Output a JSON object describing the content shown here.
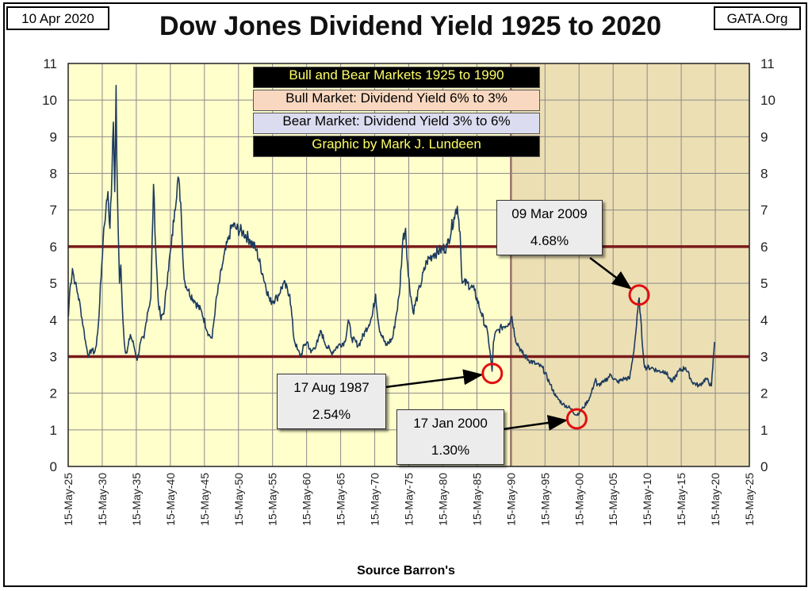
{
  "header": {
    "date": "10 Apr 2020",
    "source_tag": "GATA.Org",
    "title": "Dow Jones Dividend Yield 1925 to 2020"
  },
  "legend": [
    {
      "text": "Bull and Bear Markets 1925 to 1990",
      "bg": "#000000",
      "fg": "#ffff66"
    },
    {
      "text": "Bull Market: Dividend Yield 6% to 3%",
      "bg": "#f8d8c0",
      "fg": "#000000"
    },
    {
      "text": "Bear Market: Dividend Yield 3% to 6%",
      "bg": "#dcdcf0",
      "fg": "#000000"
    },
    {
      "text": "Graphic by Mark J. Lundeen",
      "bg": "#000000",
      "fg": "#ffff66"
    }
  ],
  "annotations": [
    {
      "date": "17 Aug 1987",
      "value": "2.54%"
    },
    {
      "date": "17 Jan 2000",
      "value": "1.30%"
    },
    {
      "date": "09 Mar 2009",
      "value": "4.68%"
    }
  ],
  "chart_data": {
    "type": "line",
    "xlabel": "Source Barron's",
    "ylabel": "",
    "ylim": [
      0,
      11
    ],
    "xlim": [
      1925.37,
      2025.37
    ],
    "y_ticks": [
      "0",
      "1",
      "2",
      "3",
      "4",
      "5",
      "6",
      "7",
      "8",
      "9",
      "10",
      "11"
    ],
    "x_tick_labels": [
      "15-May-25",
      "15-May-30",
      "15-May-35",
      "15-May-40",
      "15-May-45",
      "15-May-50",
      "15-May-55",
      "15-May-60",
      "15-May-65",
      "15-May-70",
      "15-May-75",
      "15-May-80",
      "15-May-85",
      "15-May-90",
      "15-May-95",
      "15-May-00",
      "15-May-05",
      "15-May-10",
      "15-May-15",
      "15-May-20",
      "15-May-25"
    ],
    "grid": true,
    "reference_lines": [
      3,
      6
    ],
    "shaded_regions": [
      {
        "from": 1925.37,
        "to": 1990.37,
        "color": "#ffffcc"
      },
      {
        "from": 1990.37,
        "to": 2025.37,
        "color": "#ecdfb4"
      }
    ],
    "colors": {
      "line": "#1c3a5e",
      "ref_line": "#7a1a1a",
      "highlight": "#e01010"
    },
    "highlights": [
      {
        "x": 1987.63,
        "y": 2.54
      },
      {
        "x": 2000.04,
        "y": 1.3
      },
      {
        "x": 2009.19,
        "y": 4.68
      }
    ],
    "series": [
      {
        "x": [
          1925.4,
          1925.6,
          1926.0,
          1926.4,
          1926.8,
          1927.2,
          1927.6,
          1928.0,
          1928.4,
          1928.8,
          1929.2,
          1929.5,
          1929.8,
          1930.0,
          1930.3,
          1930.6,
          1930.9,
          1931.2,
          1931.5,
          1931.8,
          1932.0,
          1932.2,
          1932.4,
          1932.5,
          1932.7,
          1932.9,
          1933.1,
          1933.4,
          1933.7,
          1934.0,
          1934.5,
          1935.0,
          1935.5,
          1936.0,
          1936.5,
          1937.0,
          1937.5,
          1937.9,
          1938.2,
          1938.6,
          1939.0,
          1939.5,
          1940.0,
          1940.5,
          1941.0,
          1941.5,
          1941.9,
          1942.1,
          1942.4,
          1943.0,
          1944.0,
          1945.0,
          1946.0,
          1946.5,
          1947.0,
          1948.0,
          1949.0,
          1949.5,
          1950.0,
          1951.0,
          1952.0,
          1953.0,
          1954.0,
          1955.0,
          1956.0,
          1957.0,
          1957.9,
          1958.5,
          1959.0,
          1959.5,
          1960.0,
          1960.5,
          1961.0,
          1962.0,
          1962.5,
          1963.0,
          1964.0,
          1965.0,
          1966.0,
          1966.5,
          1967.0,
          1968.0,
          1969.0,
          1970.0,
          1970.5,
          1971.0,
          1972.0,
          1973.0,
          1973.5,
          1974.0,
          1974.5,
          1974.9,
          1975.3,
          1976.0,
          1977.0,
          1978.0,
          1979.0,
          1980.0,
          1981.0,
          1982.0,
          1982.5,
          1982.9,
          1983.2,
          1984.0,
          1985.0,
          1986.0,
          1987.0,
          1987.6,
          1987.8,
          1988.0,
          1989.0,
          1990.0,
          1990.5,
          1991.0,
          1992.0,
          1993.0,
          1994.0,
          1995.0,
          1996.0,
          1997.0,
          1998.0,
          1999.0,
          2000.0,
          2001.0,
          2002.0,
          2002.8,
          2003.0,
          2004.0,
          2005.0,
          2006.0,
          2007.0,
          2007.8,
          2008.5,
          2009.2,
          2009.6,
          2010.0,
          2011.0,
          2012.0,
          2013.0,
          2014.0,
          2015.0,
          2016.0,
          2017.0,
          2018.0,
          2019.0,
          2019.8,
          2020.0,
          2020.25
        ],
        "y": [
          4.1,
          4.8,
          5.4,
          5.0,
          4.7,
          4.3,
          3.8,
          3.3,
          3.0,
          3.2,
          3.1,
          3.3,
          3.9,
          4.5,
          5.5,
          6.5,
          7.0,
          7.5,
          6.5,
          8.0,
          9.4,
          7.5,
          10.4,
          8.5,
          6.5,
          5.0,
          5.5,
          4.0,
          3.2,
          3.1,
          3.6,
          3.3,
          2.9,
          3.4,
          3.5,
          4.2,
          4.6,
          7.7,
          6.0,
          4.5,
          4.0,
          4.3,
          5.3,
          6.0,
          7.0,
          7.9,
          7.2,
          6.2,
          5.1,
          4.8,
          4.5,
          4.2,
          3.6,
          3.5,
          4.4,
          5.5,
          6.3,
          6.6,
          6.5,
          6.4,
          6.2,
          5.9,
          5.2,
          4.5,
          4.6,
          5.0,
          4.7,
          3.5,
          3.2,
          3.0,
          3.3,
          3.4,
          3.1,
          3.4,
          3.7,
          3.4,
          3.1,
          3.3,
          3.4,
          4.0,
          3.5,
          3.3,
          3.7,
          4.1,
          4.7,
          3.8,
          3.3,
          3.5,
          4.1,
          4.7,
          6.2,
          6.5,
          5.2,
          4.2,
          4.9,
          5.6,
          5.8,
          5.9,
          6.0,
          6.8,
          7.1,
          6.4,
          5.0,
          5.0,
          4.8,
          4.2,
          3.6,
          2.6,
          3.4,
          3.6,
          3.8,
          3.9,
          4.1,
          3.5,
          3.1,
          2.9,
          2.8,
          2.7,
          2.3,
          1.9,
          1.7,
          1.6,
          1.4,
          1.6,
          1.9,
          2.4,
          2.2,
          2.3,
          2.5,
          2.3,
          2.4,
          2.4,
          3.3,
          4.6,
          3.5,
          2.7,
          2.7,
          2.6,
          2.6,
          2.3,
          2.6,
          2.7,
          2.3,
          2.2,
          2.4,
          2.2,
          2.7,
          3.4
        ]
      }
    ]
  }
}
